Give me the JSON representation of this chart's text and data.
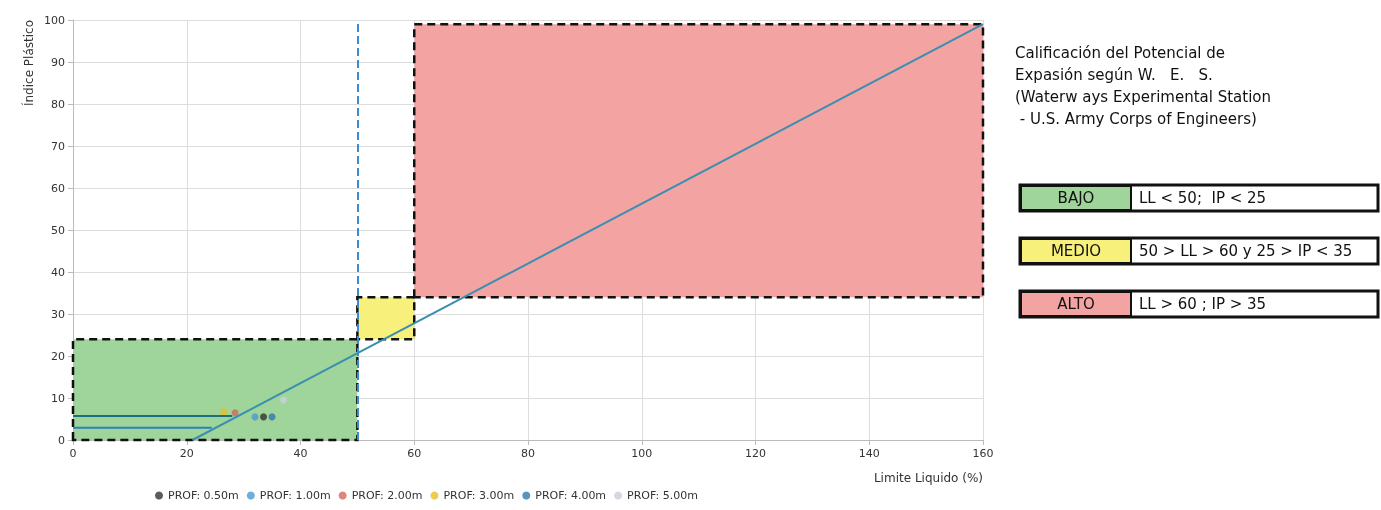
{
  "chart_data": {
    "type": "scatter",
    "xlabel": "Limite Liquido (%)",
    "ylabel": "Índice Plástico",
    "xlim": [
      0,
      160
    ],
    "xticks": [
      0,
      20,
      40,
      60,
      80,
      100,
      120,
      140,
      160
    ],
    "ylim": [
      0,
      100
    ],
    "yticks": [
      0,
      10,
      20,
      30,
      40,
      50,
      60,
      70,
      80,
      90,
      100
    ],
    "grid": true,
    "legend": "bottom",
    "annotations": [
      "Calificación del Potencial de Expasión según W.   E.   S. (Waterw ays Experimental Station - U.S. Army Corps of Engineers)",
      "LL < 50;  IP < 25",
      "50 > LL > 60 y 25 > IP < 35",
      "LL > 60 ; IP > 35"
    ],
    "ref_lines": [
      {
        "axis": "x",
        "value": 50,
        "color": "#3c8ad0",
        "line_style": "dashed"
      }
    ],
    "series": [
      {
        "type": "area",
        "name": "BAJO",
        "color": "#9fd49a",
        "x": [
          0,
          0,
          50,
          50,
          0
        ],
        "values": [
          0,
          24,
          24,
          0,
          0
        ],
        "line_style": "dashed",
        "marker": "none"
      },
      {
        "type": "area",
        "name": "MEDIO",
        "color": "#f7f07a",
        "x": [
          50,
          50,
          60,
          60,
          50
        ],
        "values": [
          24,
          34,
          34,
          24,
          24
        ],
        "line_style": "dashed",
        "marker": "none"
      },
      {
        "type": "area",
        "name": "ALTO",
        "color": "#f4a3a3",
        "x": [
          60,
          60,
          160,
          160,
          60
        ],
        "values": [
          34,
          99,
          99,
          34,
          34
        ],
        "line_style": "dashed",
        "marker": "none"
      },
      {
        "type": "line",
        "color": "#1d6f80",
        "x": [
          0,
          28
        ],
        "values": [
          5.7,
          5.7
        ],
        "line_style": "solid",
        "marker": "none"
      },
      {
        "type": "line",
        "color": "#2a7fbf",
        "x": [
          0,
          24.4
        ],
        "values": [
          2.9,
          2.9
        ],
        "line_style": "solid",
        "marker": "none"
      },
      {
        "type": "line",
        "color": "#3a8fb0",
        "x": [
          21,
          160
        ],
        "values": [
          0,
          99
        ],
        "line_style": "solid",
        "marker": "none"
      },
      {
        "name": "PROF: 0.50m",
        "color": "#333333",
        "x": [
          33.5
        ],
        "values": [
          5.5
        ],
        "marker": "circle"
      },
      {
        "name": "PROF: 1.00m",
        "color": "#4a9ad0",
        "x": [
          32
        ],
        "values": [
          5.5
        ],
        "marker": "circle"
      },
      {
        "name": "PROF: 2.00m",
        "color": "#d06a5a",
        "x": [
          28.5
        ],
        "values": [
          6.5
        ],
        "marker": "circle"
      },
      {
        "name": "PROF: 3.00m",
        "color": "#e8c020",
        "x": [
          26.5
        ],
        "values": [
          6.7
        ],
        "marker": "circle"
      },
      {
        "name": "PROF: 4.00m",
        "color": "#2f78b0",
        "x": [
          35
        ],
        "values": [
          5.5
        ],
        "marker": "circle"
      },
      {
        "name": "PROF: 5.00m",
        "color": "#c8d0dc",
        "x": [
          37
        ],
        "values": [
          9.5
        ],
        "marker": "circle"
      }
    ]
  }
}
